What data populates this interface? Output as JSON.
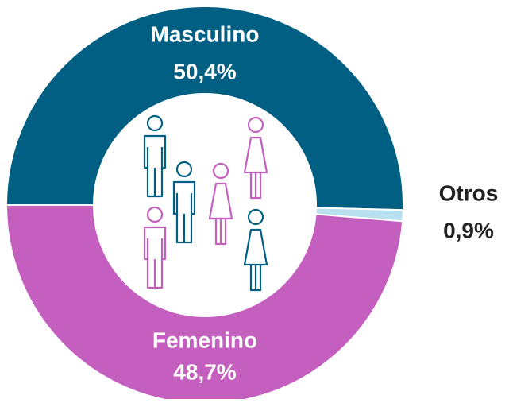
{
  "chart_data": {
    "type": "donut",
    "categories": [
      "Masculino",
      "Otros",
      "Femenino"
    ],
    "values": [
      50.4,
      0.9,
      48.7
    ],
    "value_labels": [
      "50,4%",
      "0,9%",
      "48,7%"
    ],
    "colors": [
      "#005f83",
      "#b9e0ef",
      "#c45fbf"
    ]
  }
}
